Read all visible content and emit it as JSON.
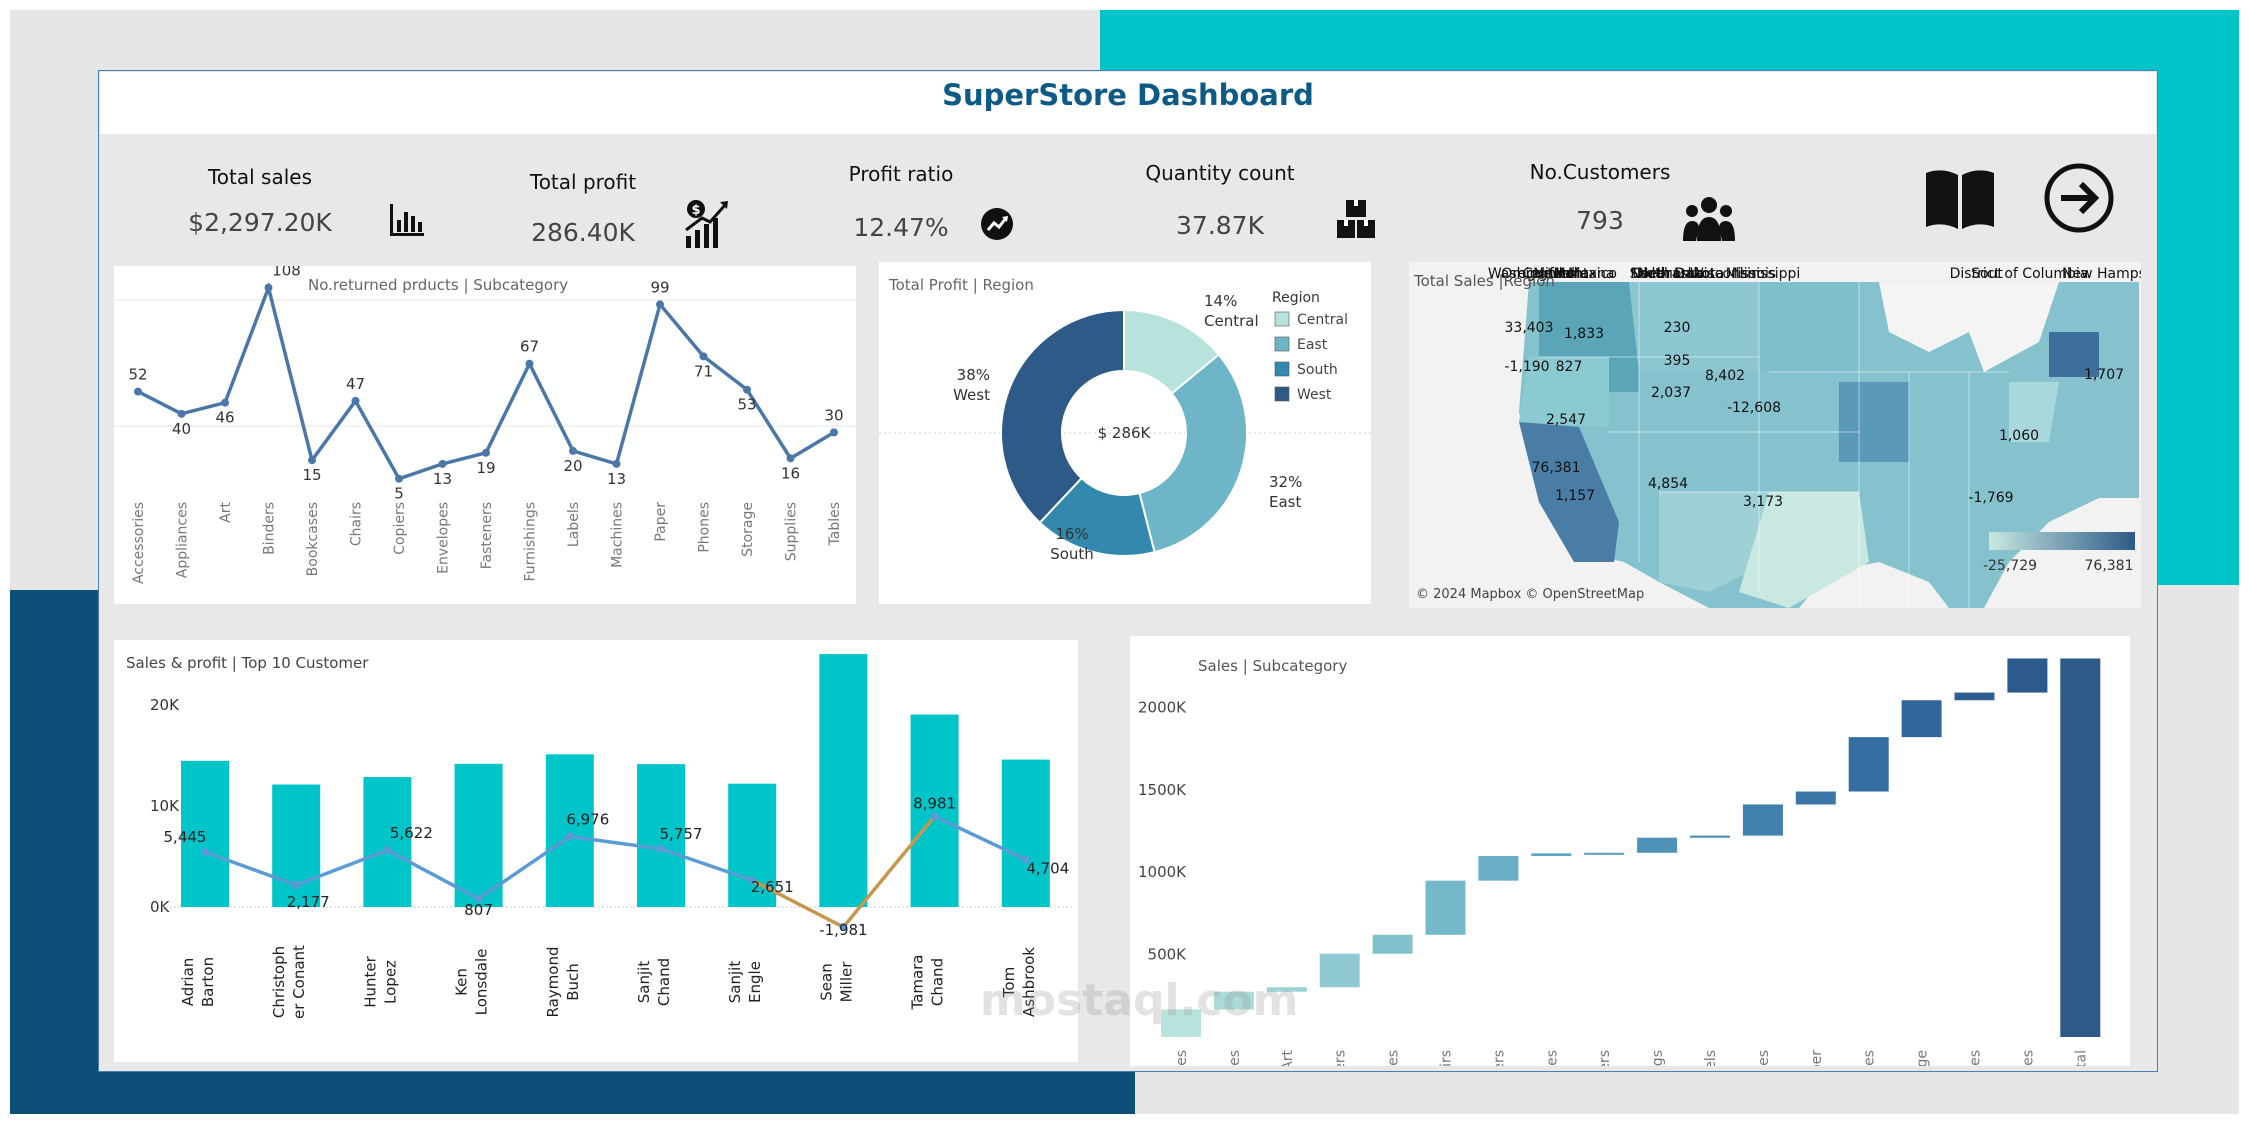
{
  "dashboard": {
    "title": "SuperStore Dashboard"
  },
  "colors": {
    "teal": "#00c5c8",
    "navy": "#0d4f78",
    "title": "#0e5a86",
    "line": "#4a76a8",
    "central": "#b8e3dc",
    "east": "#6fb5c8",
    "south": "#3388ad",
    "west": "#2d5a87"
  },
  "kpis": [
    {
      "label": "Total sales",
      "value": "$2,297.20K",
      "icon": "bar-chart-icon"
    },
    {
      "label": "Total profit",
      "value": "286.40K",
      "icon": "profit-growth-icon"
    },
    {
      "label": "Profit ratio",
      "value": "12.47%",
      "icon": "trend-circle-icon"
    },
    {
      "label": "Quantity count",
      "value": "37.87K",
      "icon": "boxes-icon"
    },
    {
      "label": "No.Customers",
      "value": "793",
      "icon": "users-icon"
    }
  ],
  "nav": {
    "book_icon": "book-icon",
    "arrow_icon": "arrow-right-circle-icon"
  },
  "returned": {
    "title": "No.returned prducts | Subcategory",
    "chart_data": {
      "type": "line",
      "title": "No.returned prducts | Subcategory",
      "categories": [
        "Accessories",
        "Appliances",
        "Art",
        "Binders",
        "Bookcases",
        "Chairs",
        "Copiers",
        "Envelopes",
        "Fasteners",
        "Furnishings",
        "Labels",
        "Machines",
        "Paper",
        "Phones",
        "Storage",
        "Supplies",
        "Tables"
      ],
      "values": [
        52,
        40,
        46,
        108,
        15,
        47,
        5,
        13,
        19,
        67,
        20,
        13,
        99,
        71,
        53,
        16,
        30
      ],
      "ylim": [
        0,
        110
      ]
    }
  },
  "profit_region": {
    "title": "Total Profit | Region",
    "center_label": "$ 286K",
    "legend_title": "Region",
    "chart_data": {
      "type": "pie",
      "title": "Total Profit | Region",
      "categories": [
        "Central",
        "East",
        "South",
        "West"
      ],
      "values": [
        14,
        32,
        16,
        38
      ],
      "labels": [
        "14%",
        "32%",
        "16%",
        "38%"
      ]
    }
  },
  "sales_region": {
    "title": "Total Sales |Region",
    "attribution": "© 2024 Mapbox © OpenStreetMap",
    "legend_min": "-25,729",
    "legend_max": "76,381",
    "labels": [
      {
        "value": "33,403",
        "name": "Washington"
      },
      {
        "value": "-1,190",
        "name": "Oregon"
      },
      {
        "value": "827",
        "name": "Idaho"
      },
      {
        "value": "1,833",
        "name": "Montana"
      },
      {
        "value": "230",
        "name": "North Dakota"
      },
      {
        "value": "395",
        "name": "South Dakota"
      },
      {
        "value": "2,037",
        "name": "Nebraska"
      },
      {
        "value": "8,402",
        "name": "Wisconsin"
      },
      {
        "value": "-12,608",
        "name": "Illinois"
      },
      {
        "value": "2,547",
        "name": "Utah"
      },
      {
        "value": "76,381",
        "name": "California"
      },
      {
        "value": "1,157",
        "name": "New Mexico"
      },
      {
        "value": "4,854",
        "name": "Oklahoma"
      },
      {
        "value": "3,173",
        "name": "Mississippi"
      },
      {
        "value": "1,060",
        "name": "District of Columbia"
      },
      {
        "value": "1,707",
        "name": "New Hamps"
      },
      {
        "value": "-1,769",
        "name": ""
      },
      {
        "value": "",
        "name": "Sout"
      }
    ]
  },
  "top_customers": {
    "title": "Sales & profit | Top 10 Customer",
    "chart_data": {
      "type": "bar",
      "title": "Sales & profit | Top 10 Customer",
      "categories": [
        "Adrian Barton",
        "Christopher Conant",
        "Hunter Lopez",
        "Ken Lonsdale",
        "Raymond Buch",
        "Sanjit Chand",
        "Sanjit Engle",
        "Sean Miller",
        "Tamara Chand",
        "Tom Ashbrook"
      ],
      "category_lines": [
        [
          "Adrian",
          "Barton"
        ],
        [
          "Christoph",
          "er Conant"
        ],
        [
          "Hunter",
          "Lopez"
        ],
        [
          "Ken",
          "Lonsdale"
        ],
        [
          "Raymond",
          "Buch"
        ],
        [
          "Sanjit",
          "Chand"
        ],
        [
          "Sanjit",
          "Engle"
        ],
        [
          "Sean",
          "Miller"
        ],
        [
          "Tamara",
          "Chand"
        ],
        [
          "Tom",
          "Ashbrook"
        ]
      ],
      "series": [
        {
          "name": "Sales",
          "values": [
            14474,
            12129,
            12873,
            14175,
            15117,
            14142,
            12209,
            25043,
            19052,
            14596
          ]
        },
        {
          "name": "Profit",
          "values": [
            5445,
            2177,
            5622,
            807,
            6976,
            5757,
            2651,
            -1981,
            8981,
            4704
          ]
        }
      ],
      "profit_labels": [
        "5,445",
        "2,177",
        "5,622",
        "807",
        "6,976",
        "5,757",
        "2,651",
        "-1,981",
        "8,981",
        "4,704"
      ],
      "yticks": [
        "20K",
        "10K",
        "0K"
      ],
      "ylim": [
        -3000,
        25000
      ]
    }
  },
  "sales_sub": {
    "title": "Sales | Subcategory",
    "chart_data": {
      "type": "bar",
      "subtype": "waterfall",
      "title": "Sales | Subcategory",
      "categories": [
        "Accessories",
        "Appliances",
        "Art",
        "Binders",
        "Bookcases",
        "Chairs",
        "Copiers",
        "Envelopes",
        "Fasteners",
        "Furnishings",
        "Labels",
        "Machines",
        "Paper",
        "Phones",
        "Storage",
        "Supplies",
        "Tables",
        "Grand Total"
      ],
      "values": [
        167380,
        107532,
        27119,
        203413,
        114880,
        328449,
        149528,
        16476,
        3024,
        91705,
        12486,
        189239,
        78479,
        330007,
        223844,
        46674,
        206966,
        2297201
      ],
      "yticks": [
        "2000K",
        "1500K",
        "1000K",
        "500K",
        "0K"
      ],
      "ylim": [
        0,
        2300000
      ]
    }
  }
}
